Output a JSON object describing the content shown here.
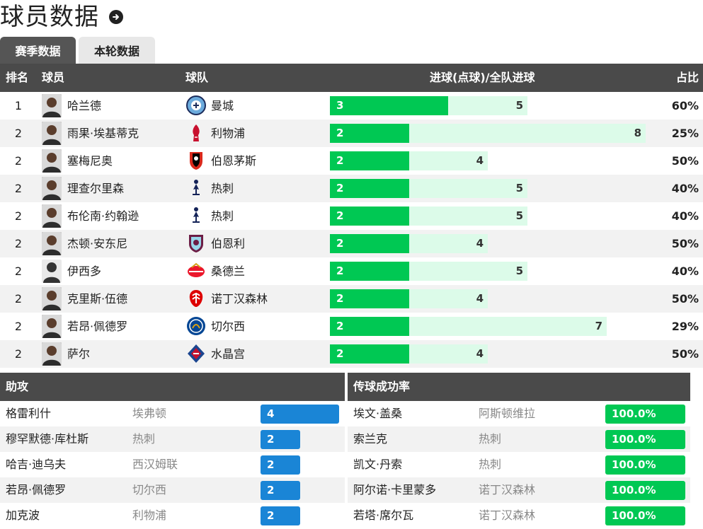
{
  "page": {
    "title": "球员数据"
  },
  "tabs": [
    {
      "label": "赛季数据",
      "active": true
    },
    {
      "label": "本轮数据",
      "active": false
    }
  ],
  "table": {
    "headers": {
      "rank": "排名",
      "player": "球员",
      "team": "球队",
      "goals": "进球(点球)/全队进球",
      "ratio": "占比"
    },
    "rows": [
      {
        "rank": "1",
        "player": "哈兰德",
        "team": "曼城",
        "goals": 3,
        "team_goals": 5,
        "ratio": "60%",
        "avatar": "photo",
        "crest": "man-city-crest"
      },
      {
        "rank": "2",
        "player": "雨果·埃基蒂克",
        "team": "利物浦",
        "goals": 2,
        "team_goals": 8,
        "ratio": "25%",
        "avatar": "photo",
        "crest": "liverpool-crest"
      },
      {
        "rank": "2",
        "player": "塞梅尼奥",
        "team": "伯恩茅斯",
        "goals": 2,
        "team_goals": 4,
        "ratio": "50%",
        "avatar": "photo",
        "crest": "bournemouth-crest"
      },
      {
        "rank": "2",
        "player": "理查尔里森",
        "team": "热刺",
        "goals": 2,
        "team_goals": 5,
        "ratio": "40%",
        "avatar": "photo",
        "crest": "tottenham-crest"
      },
      {
        "rank": "2",
        "player": "布伦南·约翰逊",
        "team": "热刺",
        "goals": 2,
        "team_goals": 5,
        "ratio": "40%",
        "avatar": "photo",
        "crest": "tottenham-crest"
      },
      {
        "rank": "2",
        "player": "杰顿·安东尼",
        "team": "伯恩利",
        "goals": 2,
        "team_goals": 4,
        "ratio": "50%",
        "avatar": "photo",
        "crest": "burnley-crest"
      },
      {
        "rank": "2",
        "player": "伊西多",
        "team": "桑德兰",
        "goals": 2,
        "team_goals": 5,
        "ratio": "40%",
        "avatar": "silhouette",
        "crest": "sunderland-crest"
      },
      {
        "rank": "2",
        "player": "克里斯·伍德",
        "team": "诺丁汉森林",
        "goals": 2,
        "team_goals": 4,
        "ratio": "50%",
        "avatar": "photo",
        "crest": "nottingham-forest-crest"
      },
      {
        "rank": "2",
        "player": "若昂·佩德罗",
        "team": "切尔西",
        "goals": 2,
        "team_goals": 7,
        "ratio": "29%",
        "avatar": "photo",
        "crest": "chelsea-crest"
      },
      {
        "rank": "2",
        "player": "萨尔",
        "team": "水晶宫",
        "goals": 2,
        "team_goals": 4,
        "ratio": "50%",
        "avatar": "photo",
        "crest": "crystal-palace-crest"
      }
    ]
  },
  "assists": {
    "title": "助攻",
    "max": 4,
    "rows": [
      {
        "player": "格雷利什",
        "team": "埃弗顿",
        "value": 4
      },
      {
        "player": "穆罕默德·库杜斯",
        "team": "热刺",
        "value": 2
      },
      {
        "player": "哈吉·迪乌夫",
        "team": "西汉姆联",
        "value": 2
      },
      {
        "player": "若昂·佩德罗",
        "team": "切尔西",
        "value": 2
      },
      {
        "player": "加克波",
        "team": "利物浦",
        "value": 2
      }
    ]
  },
  "passing": {
    "title": "传球成功率",
    "rows": [
      {
        "player": "埃文·盖桑",
        "team": "阿斯顿维拉",
        "value": "100.0%",
        "fraction": 1.0
      },
      {
        "player": "索兰克",
        "team": "热刺",
        "value": "100.0%",
        "fraction": 1.0
      },
      {
        "player": "凯文·丹索",
        "team": "热刺",
        "value": "100.0%",
        "fraction": 1.0
      },
      {
        "player": "阿尔诺·卡里蒙多",
        "team": "诺丁汉森林",
        "value": "100.0%",
        "fraction": 1.0
      },
      {
        "player": "若塔·席尔瓦",
        "team": "诺丁汉森林",
        "value": "100.0%",
        "fraction": 1.0
      }
    ]
  },
  "colors": {
    "goal_bar": "#00c853",
    "total_bar": "#dcfbe9",
    "assist_bar": "#1a85d6",
    "header_bg": "#4a4a4a"
  }
}
